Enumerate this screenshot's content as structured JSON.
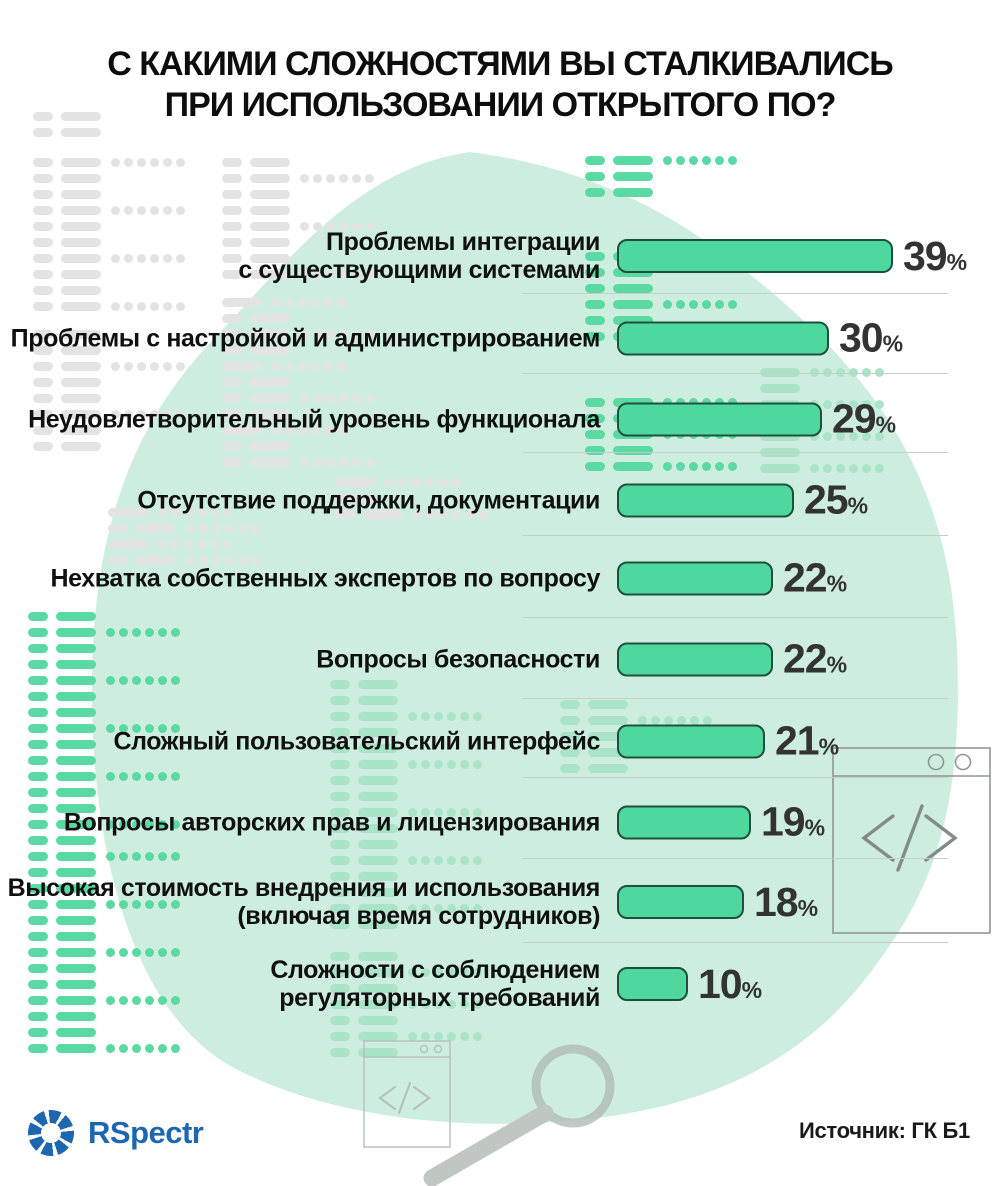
{
  "title": {
    "line1": "С КАКИМИ СЛОЖНОСТЯМИ ВЫ СТАЛКИВАЛИСЬ",
    "line2": "ПРИ ИСПОЛЬЗОВАНИИ ОТКРЫТОГО ПО?"
  },
  "chart_data": {
    "type": "bar",
    "orientation": "horizontal",
    "title": "С КАКИМИ СЛОЖНОСТЯМИ ВЫ СТАЛКИВАЛИСЬ ПРИ ИСПОЛЬЗОВАНИИ ОТКРЫТОГО ПО?",
    "unit": "%",
    "value_axis_visible": false,
    "grid": false,
    "legend": false,
    "value_range": [
      0,
      39
    ],
    "categories": [
      "Проблемы интеграции с существующими системами",
      "Проблемы с настройкой и администрированием",
      "Неудовлетворительный уровень функционала",
      "Отсутствие поддержки, документации",
      "Нехватка собственных экспертов по вопросу",
      "Вопросы безопасности",
      "Сложный пользовательский интерфейс",
      "Вопросы авторских прав и лицензирования",
      "Высокая стоимость внедрения и использования (включая время сотрудников)",
      "Сложности с соблюдением регуляторных требований"
    ],
    "values": [
      39,
      30,
      29,
      25,
      22,
      22,
      21,
      19,
      18,
      10
    ],
    "rows": [
      {
        "label_lines": [
          "Проблемы интеграции",
          "с существующими системами"
        ],
        "value": 39
      },
      {
        "label_lines": [
          "Проблемы с настройкой и администрированием"
        ],
        "value": 30
      },
      {
        "label_lines": [
          "Неудовлетворительный уровень функционала"
        ],
        "value": 29
      },
      {
        "label_lines": [
          "Отсутствие поддержки, документации"
        ],
        "value": 25
      },
      {
        "label_lines": [
          "Нехватка собственных экспертов по вопросу"
        ],
        "value": 22
      },
      {
        "label_lines": [
          "Вопросы безопасности"
        ],
        "value": 22
      },
      {
        "label_lines": [
          "Сложный пользовательский интерфейс"
        ],
        "value": 21
      },
      {
        "label_lines": [
          "Вопросы авторских прав и лицензирования"
        ],
        "value": 19
      },
      {
        "label_lines": [
          "Высокая стоимость внедрения и использования",
          "(включая время сотрудников)"
        ],
        "value": 18
      },
      {
        "label_lines": [
          "Сложности с соблюдением",
          "регуляторных требований"
        ],
        "value": 10
      }
    ]
  },
  "footer": {
    "logo_text": "RSpectr",
    "source_label": "Источник: ГК Б1"
  },
  "colors": {
    "bar_fill": "#4fd89d",
    "bar_border": "#1e5040",
    "blob": "#cdeede",
    "dash_green": "#5bd9a3",
    "dash_green_faint": "#a9e4c8",
    "dash_gray": "#e3e3e3",
    "divider": "#c7cdc9",
    "text": "#0d0d0d",
    "percent_text": "#333333",
    "logo_blue": "#1c67b0",
    "window_stroke": "#8f9696",
    "window_stroke_light": "#b5c2bb",
    "magnifier_gray": "#bcc3bf"
  },
  "icons": {
    "code_glyph": "</>",
    "browser_window": "browser-window-icon",
    "magnifier": "magnifier-icon"
  }
}
